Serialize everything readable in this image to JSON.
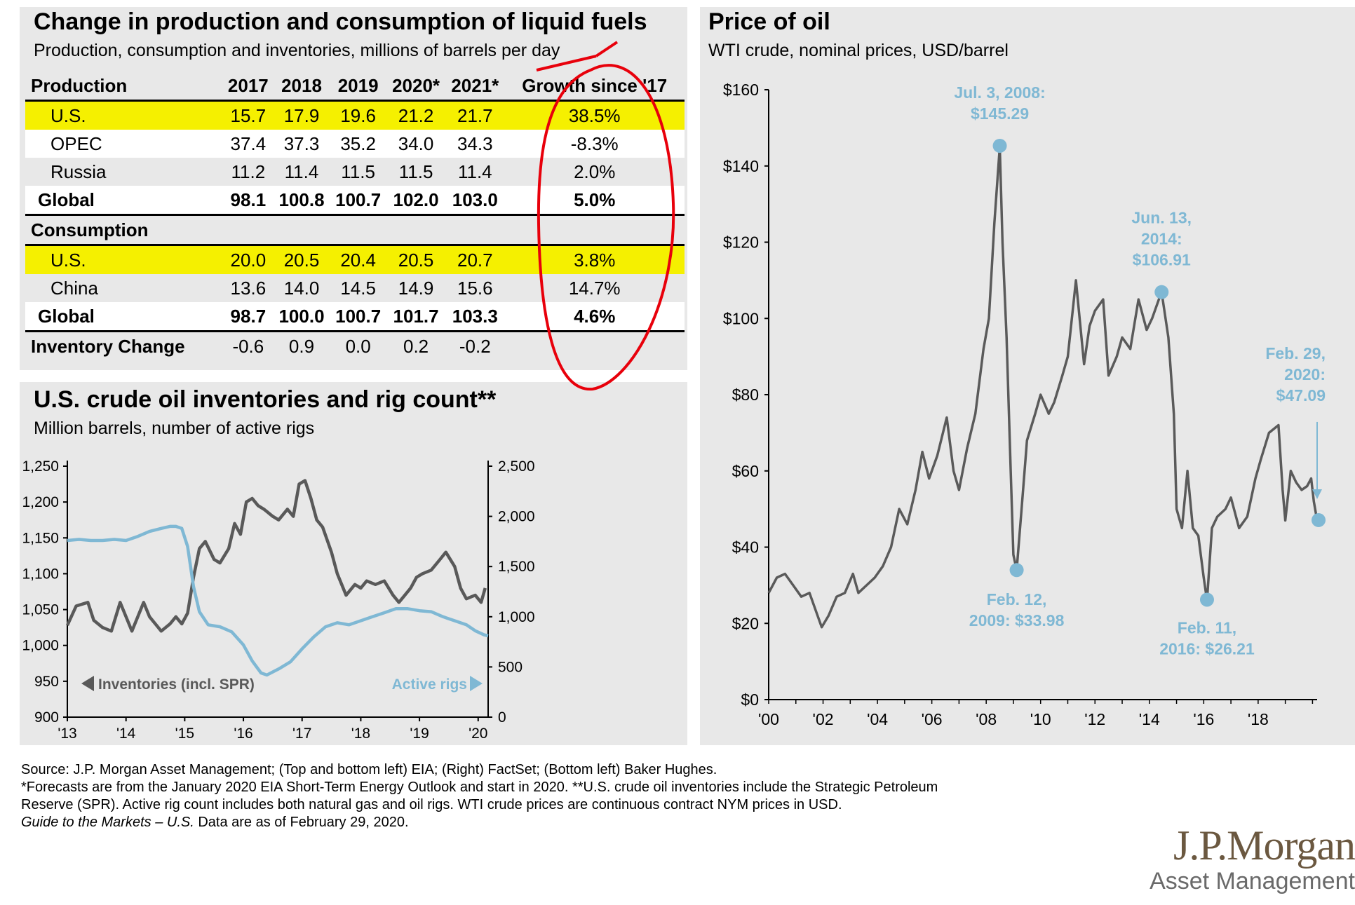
{
  "table_panel": {
    "title": "Change in production and consumption of liquid fuels",
    "subtitle": "Production, consumption and inventories, millions of barrels per day",
    "headers": [
      "Production",
      "2017",
      "2018",
      "2019",
      "2020*",
      "2021*",
      "Growth since '17"
    ],
    "production_rows": [
      {
        "label": "U.S.",
        "values": [
          "15.7",
          "17.9",
          "19.6",
          "21.2",
          "21.7",
          "38.5%"
        ]
      },
      {
        "label": "OPEC",
        "values": [
          "37.4",
          "37.3",
          "35.2",
          "34.0",
          "34.3",
          "-8.3%"
        ]
      },
      {
        "label": "Russia",
        "values": [
          "11.2",
          "11.4",
          "11.5",
          "11.5",
          "11.4",
          "2.0%"
        ]
      },
      {
        "label": "Global",
        "values": [
          "98.1",
          "100.8",
          "100.7",
          "102.0",
          "103.0",
          "5.0%"
        ]
      }
    ],
    "consumption_label": "Consumption",
    "consumption_rows": [
      {
        "label": "U.S.",
        "values": [
          "20.0",
          "20.5",
          "20.4",
          "20.5",
          "20.7",
          "3.8%"
        ]
      },
      {
        "label": "China",
        "values": [
          "13.6",
          "14.0",
          "14.5",
          "14.9",
          "15.6",
          "14.7%"
        ]
      },
      {
        "label": "Global",
        "values": [
          "98.7",
          "100.0",
          "100.7",
          "101.7",
          "103.3",
          "4.6%"
        ]
      }
    ],
    "inventory_row": {
      "label": "Inventory Change",
      "values": [
        "-0.6",
        "0.9",
        "0.0",
        "0.2",
        "-0.2",
        ""
      ]
    }
  },
  "inventories_panel": {
    "title": "U.S. crude oil inventories and rig count**",
    "subtitle": "Million barrels, number of active rigs",
    "left_legend": "Inventories (incl. SPR)",
    "right_legend": "Active rigs"
  },
  "oil_panel": {
    "title": "Price of oil",
    "subtitle": "WTI crude, nominal prices, USD/barrel"
  },
  "chart_data": [
    {
      "type": "table",
      "title": "Change in production and consumption of liquid fuels"
    },
    {
      "type": "line",
      "title": "U.S. crude oil inventories and rig count**",
      "x_ticks": [
        "'13",
        "'14",
        "'15",
        "'16",
        "'17",
        "'18",
        "'19",
        "'20"
      ],
      "y_left_ticks": [
        "1,250",
        "1,200",
        "1,150",
        "1,100",
        "1,050",
        "1,000",
        "950",
        "900"
      ],
      "y_right_ticks": [
        "2,500",
        "2,000",
        "1,500",
        "1,000",
        "500",
        "0"
      ],
      "ylim_left": [
        900,
        1250
      ],
      "ylim_right": [
        0,
        2500
      ],
      "xlim": [
        2013.0,
        2020.17
      ],
      "series": [
        {
          "name": "Inventories (incl. SPR)",
          "axis": "left",
          "color": "#595959",
          "x": [
            2013.0,
            2013.15,
            2013.35,
            2013.45,
            2013.6,
            2013.75,
            2013.9,
            2014.0,
            2014.1,
            2014.3,
            2014.4,
            2014.5,
            2014.6,
            2014.75,
            2014.85,
            2014.95,
            2015.05,
            2015.15,
            2015.25,
            2015.35,
            2015.5,
            2015.6,
            2015.75,
            2015.85,
            2015.95,
            2016.05,
            2016.15,
            2016.25,
            2016.35,
            2016.5,
            2016.6,
            2016.75,
            2016.85,
            2016.95,
            2017.05,
            2017.15,
            2017.25,
            2017.35,
            2017.5,
            2017.6,
            2017.75,
            2017.9,
            2018.0,
            2018.1,
            2018.25,
            2018.4,
            2018.55,
            2018.65,
            2018.75,
            2018.85,
            2018.95,
            2019.05,
            2019.2,
            2019.35,
            2019.45,
            2019.6,
            2019.7,
            2019.8,
            2019.95,
            2020.05,
            2020.12
          ],
          "values": [
            1028,
            1055,
            1060,
            1035,
            1025,
            1020,
            1060,
            1040,
            1020,
            1060,
            1040,
            1030,
            1020,
            1030,
            1040,
            1030,
            1045,
            1095,
            1135,
            1145,
            1120,
            1115,
            1135,
            1170,
            1155,
            1200,
            1205,
            1195,
            1190,
            1180,
            1175,
            1190,
            1180,
            1225,
            1230,
            1205,
            1175,
            1165,
            1130,
            1100,
            1070,
            1085,
            1080,
            1090,
            1085,
            1090,
            1070,
            1060,
            1070,
            1080,
            1095,
            1100,
            1105,
            1120,
            1130,
            1110,
            1080,
            1065,
            1070,
            1060,
            1080
          ]
        },
        {
          "name": "Active rigs",
          "axis": "right",
          "color": "#7fb8d4",
          "x": [
            2013.0,
            2013.2,
            2013.4,
            2013.6,
            2013.8,
            2014.0,
            2014.2,
            2014.4,
            2014.6,
            2014.75,
            2014.85,
            2014.95,
            2015.05,
            2015.15,
            2015.25,
            2015.4,
            2015.6,
            2015.8,
            2016.0,
            2016.15,
            2016.3,
            2016.4,
            2016.6,
            2016.8,
            2017.0,
            2017.2,
            2017.4,
            2017.6,
            2017.8,
            2018.0,
            2018.2,
            2018.4,
            2018.6,
            2018.8,
            2019.0,
            2019.2,
            2019.4,
            2019.6,
            2019.8,
            2019.95,
            2020.1,
            2020.17
          ],
          "values": [
            1760,
            1770,
            1760,
            1760,
            1770,
            1760,
            1800,
            1850,
            1880,
            1900,
            1900,
            1880,
            1700,
            1300,
            1050,
            920,
            900,
            850,
            720,
            560,
            440,
            420,
            480,
            550,
            680,
            800,
            900,
            940,
            920,
            960,
            1000,
            1040,
            1080,
            1080,
            1060,
            1050,
            1000,
            960,
            920,
            860,
            820,
            810
          ]
        }
      ]
    },
    {
      "type": "line",
      "title": "Price of oil",
      "x_ticks": [
        "'00",
        "'02",
        "'04",
        "'06",
        "'08",
        "'10",
        "'12",
        "'14",
        "'16",
        "'18"
      ],
      "y_ticks": [
        "$160",
        "$140",
        "$120",
        "$100",
        "$80",
        "$60",
        "$40",
        "$20",
        "$0"
      ],
      "ylim": [
        0,
        160
      ],
      "xlim": [
        2000.0,
        2020.17
      ],
      "series": [
        {
          "name": "WTI crude",
          "color": "#5a5a5a",
          "x": [
            2000.0,
            2000.3,
            2000.6,
            2000.9,
            2001.2,
            2001.5,
            2001.8,
            2001.95,
            2002.2,
            2002.5,
            2002.8,
            2003.1,
            2003.3,
            2003.6,
            2003.9,
            2004.2,
            2004.5,
            2004.8,
            2005.1,
            2005.4,
            2005.65,
            2005.9,
            2006.2,
            2006.55,
            2006.8,
            2007.0,
            2007.3,
            2007.6,
            2007.9,
            2008.1,
            2008.3,
            2008.5,
            2008.6,
            2008.75,
            2008.9,
            2009.0,
            2009.12,
            2009.3,
            2009.5,
            2009.8,
            2010.0,
            2010.3,
            2010.5,
            2010.8,
            2011.0,
            2011.3,
            2011.6,
            2011.8,
            2012.0,
            2012.3,
            2012.5,
            2012.8,
            2013.0,
            2013.3,
            2013.6,
            2013.9,
            2014.1,
            2014.45,
            2014.7,
            2014.9,
            2015.0,
            2015.2,
            2015.4,
            2015.6,
            2015.8,
            2016.0,
            2016.12,
            2016.3,
            2016.5,
            2016.8,
            2017.0,
            2017.3,
            2017.6,
            2017.9,
            2018.1,
            2018.4,
            2018.75,
            2018.9,
            2019.0,
            2019.2,
            2019.4,
            2019.6,
            2019.8,
            2019.95,
            2020.05,
            2020.17
          ],
          "values": [
            28,
            32,
            33,
            30,
            27,
            28,
            22,
            19,
            22,
            27,
            28,
            33,
            28,
            30,
            32,
            35,
            40,
            50,
            46,
            55,
            65,
            58,
            64,
            74,
            60,
            55,
            66,
            75,
            92,
            100,
            125,
            145,
            120,
            95,
            60,
            38,
            34,
            50,
            68,
            75,
            80,
            75,
            78,
            85,
            90,
            110,
            88,
            98,
            102,
            105,
            85,
            90,
            95,
            92,
            105,
            97,
            100,
            107,
            95,
            75,
            50,
            45,
            60,
            45,
            43,
            32,
            26,
            45,
            48,
            50,
            53,
            45,
            48,
            58,
            63,
            70,
            72,
            55,
            47,
            60,
            57,
            55,
            56,
            58,
            52,
            47
          ]
        }
      ],
      "annotations": [
        {
          "text": [
            "Jul. 3, 2008:",
            "$145.29"
          ],
          "x": 2008.5,
          "y": 145.29
        },
        {
          "text": [
            "Feb. 12,",
            "2009: $33.98"
          ],
          "x": 2009.12,
          "y": 33.98
        },
        {
          "text": [
            "Jun. 13,",
            "2014:",
            "$106.91"
          ],
          "x": 2014.45,
          "y": 106.91
        },
        {
          "text": [
            "Feb. 11,",
            "2016: $26.21"
          ],
          "x": 2016.12,
          "y": 26.21
        },
        {
          "text": [
            "Feb. 29,",
            "2020:",
            "$47.09"
          ],
          "x": 2020.17,
          "y": 47.09
        }
      ]
    }
  ],
  "footnote": {
    "line1": "Source: J.P. Morgan Asset Management; (Top and bottom left) EIA; (Right) FactSet; (Bottom left) Baker Hughes.",
    "line2": "*Forecasts are from the January 2020 EIA Short-Term Energy Outlook and start in 2020. **U.S. crude oil inventories include the Strategic Petroleum",
    "line3": "Reserve (SPR). Active rig count includes both natural gas and oil rigs. WTI crude prices are continuous contract NYM prices in USD.",
    "line4_italic": "Guide to the Markets – U.S.",
    "line4_rest": " Data are as of February 29, 2020."
  },
  "logo": {
    "line1": "J.P.Morgan",
    "line2": "Asset Management"
  },
  "colors": {
    "panel_bg": "#e8e8e8",
    "highlight": "#f5f000",
    "accent_blue": "#7fb8d4",
    "dark_line": "#595959",
    "annotation_red": "#e8000b"
  }
}
